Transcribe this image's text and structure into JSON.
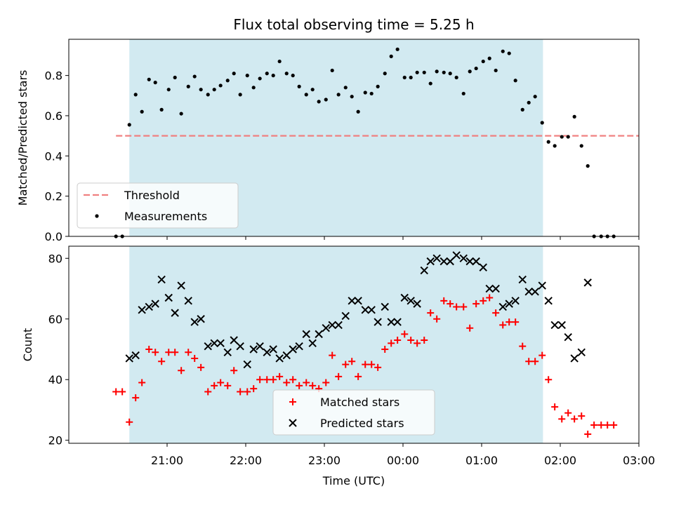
{
  "chart_data": {
    "title": "Flux total observing time = 5.25 h",
    "xlabel": "Time (UTC)",
    "xticks": [
      "21:00",
      "22:00",
      "23:00",
      "00:00",
      "01:00",
      "02:00",
      "03:00"
    ],
    "xrange_hours_utc": [
      19.75,
      27.0
    ],
    "observing_window_hours_utc": [
      20.52,
      25.78
    ],
    "shade_color": "#add8e6",
    "panels": [
      {
        "type": "scatter",
        "ylabel": "Matched/Predicted stars",
        "ylim": [
          0,
          0.98
        ],
        "yticks": [
          "0.0",
          "0.2",
          "0.4",
          "0.6",
          "0.8"
        ],
        "legend_position": "lower-left",
        "threshold": {
          "name": "Threshold",
          "value": 0.5,
          "x_range": [
            20.35,
            27.0
          ],
          "color": "#f08080",
          "style": "dashed"
        },
        "series": [
          {
            "name": "Measurements",
            "color": "#000000",
            "marker": "dot",
            "x": [
              20.35,
              20.43,
              20.52,
              20.6,
              20.68,
              20.77,
              20.85,
              20.93,
              21.02,
              21.1,
              21.18,
              21.27,
              21.35,
              21.43,
              21.52,
              21.6,
              21.68,
              21.77,
              21.85,
              21.93,
              22.02,
              22.1,
              22.18,
              22.27,
              22.35,
              22.43,
              22.52,
              22.6,
              22.68,
              22.77,
              22.85,
              22.93,
              23.02,
              23.1,
              23.18,
              23.27,
              23.35,
              23.43,
              23.52,
              23.6,
              23.68,
              23.77,
              23.85,
              23.93,
              24.02,
              24.1,
              24.18,
              24.27,
              24.35,
              24.43,
              24.52,
              24.6,
              24.68,
              24.77,
              24.85,
              24.93,
              25.02,
              25.1,
              25.18,
              25.27,
              25.35,
              25.43,
              25.52,
              25.6,
              25.68,
              25.77,
              25.85,
              25.93,
              26.02,
              26.1,
              26.18,
              26.27,
              26.35,
              26.43,
              26.52,
              26.6,
              26.68
            ],
            "y": [
              0.0,
              0.0,
              0.555,
              0.705,
              0.62,
              0.78,
              0.765,
              0.63,
              0.73,
              0.79,
              0.61,
              0.745,
              0.795,
              0.73,
              0.705,
              0.73,
              0.75,
              0.775,
              0.81,
              0.705,
              0.8,
              0.74,
              0.785,
              0.81,
              0.8,
              0.87,
              0.81,
              0.8,
              0.745,
              0.705,
              0.73,
              0.67,
              0.68,
              0.825,
              0.705,
              0.74,
              0.695,
              0.62,
              0.715,
              0.71,
              0.745,
              0.81,
              0.895,
              0.93,
              0.79,
              0.79,
              0.815,
              0.815,
              0.76,
              0.82,
              0.815,
              0.81,
              0.79,
              0.71,
              0.82,
              0.835,
              0.87,
              0.885,
              0.825,
              0.92,
              0.91,
              0.775,
              0.63,
              0.665,
              0.695,
              0.565,
              0.47,
              0.45,
              0.495,
              0.495,
              0.595,
              0.45,
              0.35,
              0.0,
              0.0,
              0.0,
              0.0
            ]
          }
        ]
      },
      {
        "type": "scatter",
        "ylabel": "Count",
        "ylim": [
          19,
          84
        ],
        "yticks": [
          "20",
          "40",
          "60",
          "80"
        ],
        "legend_position": "lower-center",
        "series": [
          {
            "name": "Matched stars",
            "color": "#ff0000",
            "marker": "plus",
            "x": [
              20.35,
              20.43,
              20.52,
              20.6,
              20.68,
              20.77,
              20.85,
              20.93,
              21.02,
              21.1,
              21.18,
              21.27,
              21.35,
              21.43,
              21.52,
              21.6,
              21.68,
              21.77,
              21.85,
              21.93,
              22.02,
              22.1,
              22.18,
              22.27,
              22.35,
              22.43,
              22.52,
              22.6,
              22.68,
              22.77,
              22.85,
              22.93,
              23.02,
              23.1,
              23.18,
              23.27,
              23.35,
              23.43,
              23.52,
              23.6,
              23.68,
              23.77,
              23.85,
              23.93,
              24.02,
              24.1,
              24.18,
              24.27,
              24.35,
              24.43,
              24.52,
              24.6,
              24.68,
              24.77,
              24.85,
              24.93,
              25.02,
              25.1,
              25.18,
              25.27,
              25.35,
              25.43,
              25.52,
              25.6,
              25.68,
              25.77,
              25.85,
              25.93,
              26.02,
              26.1,
              26.18,
              26.27,
              26.35,
              26.43,
              26.52,
              26.6,
              26.68
            ],
            "y": [
              36,
              36,
              26,
              34,
              39,
              50,
              49,
              46,
              49,
              49,
              43,
              49,
              47,
              44,
              36,
              38,
              39,
              38,
              43,
              36,
              36,
              37,
              40,
              40,
              40,
              41,
              39,
              40,
              38,
              39,
              38,
              37,
              39,
              48,
              41,
              45,
              46,
              41,
              45,
              45,
              44,
              50,
              52,
              53,
              55,
              53,
              52,
              53,
              62,
              60,
              66,
              65,
              64,
              64,
              57,
              65,
              66,
              67,
              62,
              58,
              59,
              59,
              51,
              46,
              46,
              48,
              40,
              31,
              27,
              29,
              27,
              28,
              22,
              25,
              25,
              25,
              25
            ]
          },
          {
            "name": "Predicted stars",
            "color": "#000000",
            "marker": "x",
            "x": [
              20.52,
              20.6,
              20.68,
              20.77,
              20.85,
              20.93,
              21.02,
              21.1,
              21.18,
              21.27,
              21.35,
              21.43,
              21.52,
              21.6,
              21.68,
              21.77,
              21.85,
              21.93,
              22.02,
              22.1,
              22.18,
              22.27,
              22.35,
              22.43,
              22.52,
              22.6,
              22.68,
              22.77,
              22.85,
              22.93,
              23.02,
              23.1,
              23.18,
              23.27,
              23.35,
              23.43,
              23.52,
              23.6,
              23.68,
              23.77,
              23.85,
              23.93,
              24.02,
              24.1,
              24.18,
              24.27,
              24.35,
              24.43,
              24.52,
              24.6,
              24.68,
              24.77,
              24.85,
              24.93,
              25.02,
              25.1,
              25.18,
              25.27,
              25.35,
              25.43,
              25.52,
              25.6,
              25.68,
              25.77,
              25.85,
              25.93,
              26.02,
              26.1,
              26.18,
              26.27,
              26.35
            ],
            "y": [
              47,
              48,
              63,
              64,
              65,
              73,
              67,
              62,
              71,
              66,
              59,
              60,
              51,
              52,
              52,
              49,
              53,
              51,
              45,
              50,
              51,
              49,
              50,
              47,
              48,
              50,
              51,
              55,
              52,
              55,
              57,
              58,
              58,
              61,
              66,
              66,
              63,
              63,
              59,
              64,
              59,
              59,
              67,
              66,
              65,
              76,
              79,
              80,
              79,
              79,
              81,
              80,
              79,
              79,
              77,
              70,
              70,
              64,
              65,
              66,
              73,
              69,
              69,
              71,
              66,
              58,
              58,
              54,
              47,
              49,
              72
            ]
          }
        ]
      }
    ]
  }
}
